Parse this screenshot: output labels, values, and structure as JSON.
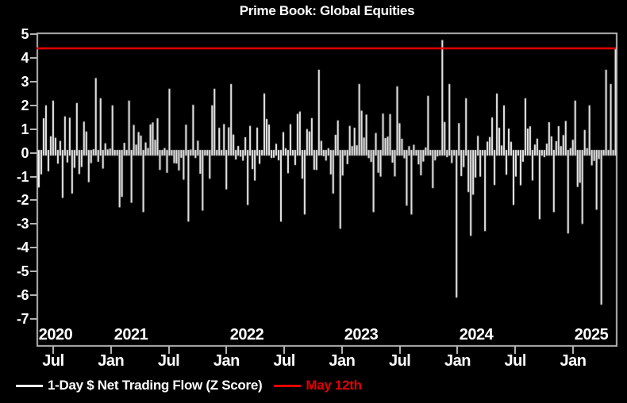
{
  "title": "Prime Book: Global Equities",
  "colors": {
    "background": "#000000",
    "bars": "#ffffff",
    "frame": "#b2b2b2",
    "text": "#ffffff",
    "red_line": "#f00000",
    "red_text": "#e00000"
  },
  "legend": {
    "series_label": "1-Day $ Net Trading Flow (Z Score)",
    "reference_label": "May 12th"
  },
  "chart_data": {
    "type": "bar",
    "title": "Prime Book: Global Equities",
    "xlabel": "",
    "ylabel": "1-Day $ Net Trading Flow (Z Score)",
    "ylim": [
      -7,
      5
    ],
    "yticks": [
      5,
      4,
      3,
      2,
      1,
      0,
      -1,
      -2,
      -3,
      -4,
      -5,
      -6,
      -7
    ],
    "x_range": [
      "2020-05",
      "2025-05-12"
    ],
    "xticks_months": [
      "Jul",
      "Jan",
      "Jul",
      "Jan",
      "Jul",
      "Jan",
      "Jul",
      "Jan",
      "Jul",
      "Jan"
    ],
    "xticks_years": [
      "2020",
      "2021",
      "2022",
      "2023",
      "2024",
      "2025"
    ],
    "grid": false,
    "legend_position": "bottom-left",
    "reference_line": {
      "label": "May 12th",
      "value": 4.4
    },
    "bars": {
      "count": 244,
      "seed": 42,
      "approx_mean": 0,
      "approx_sd": 1.0,
      "notable_points": [
        {
          "frac": 0.012,
          "value": 2.0
        },
        {
          "frac": 0.023,
          "value": 2.2
        },
        {
          "frac": 0.04,
          "value": -1.9
        },
        {
          "frac": 0.097,
          "value": 3.15
        },
        {
          "frac": 0.108,
          "value": 2.3
        },
        {
          "frac": 0.138,
          "value": -2.3
        },
        {
          "frac": 0.156,
          "value": 2.2
        },
        {
          "frac": 0.183,
          "value": -2.5
        },
        {
          "frac": 0.228,
          "value": 2.7
        },
        {
          "frac": 0.259,
          "value": -2.9
        },
        {
          "frac": 0.304,
          "value": 2.7
        },
        {
          "frac": 0.335,
          "value": 2.9
        },
        {
          "frac": 0.363,
          "value": -2.2
        },
        {
          "frac": 0.39,
          "value": 2.5
        },
        {
          "frac": 0.419,
          "value": -2.9
        },
        {
          "frac": 0.461,
          "value": -2.6
        },
        {
          "frac": 0.487,
          "value": 3.5
        },
        {
          "frac": 0.521,
          "value": -3.2
        },
        {
          "frac": 0.554,
          "value": 2.9
        },
        {
          "frac": 0.58,
          "value": -2.5
        },
        {
          "frac": 0.621,
          "value": 2.8
        },
        {
          "frac": 0.648,
          "value": -2.6
        },
        {
          "frac": 0.676,
          "value": 2.4
        },
        {
          "frac": 0.7,
          "value": 4.75
        },
        {
          "frac": 0.711,
          "value": 2.9
        },
        {
          "frac": 0.724,
          "value": -6.1
        },
        {
          "frac": 0.739,
          "value": 2.3
        },
        {
          "frac": 0.75,
          "value": -3.5
        },
        {
          "frac": 0.772,
          "value": -3.3
        },
        {
          "frac": 0.796,
          "value": 2.5
        },
        {
          "frac": 0.824,
          "value": -2.2
        },
        {
          "frac": 0.843,
          "value": 2.3
        },
        {
          "frac": 0.867,
          "value": -2.8
        },
        {
          "frac": 0.895,
          "value": -2.5
        },
        {
          "frac": 0.918,
          "value": -3.4
        },
        {
          "frac": 0.932,
          "value": 2.2
        },
        {
          "frac": 0.943,
          "value": -3.0
        },
        {
          "frac": 0.956,
          "value": 2.0
        },
        {
          "frac": 0.966,
          "value": -2.4
        },
        {
          "frac": 0.975,
          "value": -6.4
        },
        {
          "frac": 0.982,
          "value": 3.5
        },
        {
          "frac": 0.992,
          "value": 2.9
        },
        {
          "frac": 1.0,
          "value": 4.4
        }
      ]
    }
  }
}
